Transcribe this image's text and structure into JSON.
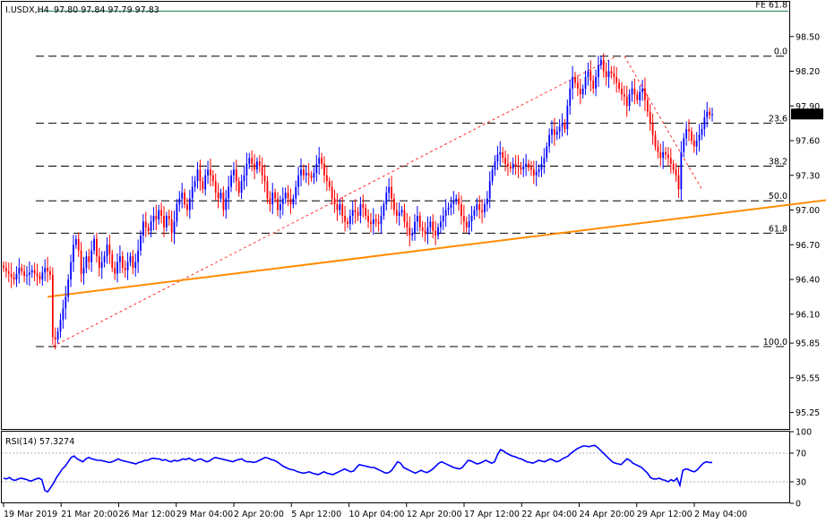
{
  "header": {
    "symbol": "I.USDX,H4",
    "ohlc": "97.80 97.84 97.79 97.83"
  },
  "rsi_title": "RSI(14) 57.3274",
  "colors": {
    "bull": "#0000ff",
    "bear": "#ff0000",
    "trend_support": "#ff8c00",
    "trend_resistance": "#3399dd",
    "fe_line": "#1a7a4a",
    "fib_lines": "#000000",
    "rsi_line": "#0000ff",
    "price_tag_bg": "#000000",
    "price_tag_text": "#ffffff"
  },
  "chart_data": [
    {
      "type": "candlestick",
      "title": "I.USDX,H4",
      "ylim": [
        95.1,
        98.8
      ],
      "yticks": [
        "98.50",
        "98.20",
        "97.90",
        "97.60",
        "97.30",
        "97.00",
        "96.70",
        "96.40",
        "96.10",
        "95.85",
        "95.55",
        "95.25"
      ],
      "last_price": "97.83",
      "x_tick_labels": [
        "19 Mar 2019",
        "21 Mar 20:00",
        "26 Mar 12:00",
        "29 Mar 04:00",
        "2 Apr 20:00",
        "5 Apr 12:00",
        "10 Apr 04:00",
        "12 Apr 20:00",
        "17 Apr 12:00",
        "22 Apr 04:00",
        "24 Apr 20:00",
        "29 Apr 12:00",
        "2 May 04:00"
      ],
      "fibonacci_levels": [
        {
          "label": "0.0",
          "price": 98.33
        },
        {
          "label": "23.6",
          "price": 97.75
        },
        {
          "label": "38.2",
          "price": 97.38
        },
        {
          "label": "50.0",
          "price": 97.08
        },
        {
          "label": "61.8",
          "price": 96.8
        },
        {
          "label": "100.0",
          "price": 95.82
        }
      ],
      "fe_level": {
        "label": "FE 61.8",
        "price": 98.72
      },
      "trendlines": [
        {
          "name": "support",
          "from": [
            17,
            96.25
          ],
          "to": [
            388,
            97.28
          ]
        },
        {
          "name": "resistance",
          "from": [
            322,
            98.3
          ],
          "to": [
            407,
            97.58
          ]
        }
      ],
      "series": [
        {
          "name": "close",
          "values": [
            96.5,
            96.47,
            96.45,
            96.42,
            96.4,
            96.45,
            96.5,
            96.47,
            96.43,
            96.44,
            96.46,
            96.48,
            96.45,
            96.43,
            96.4,
            96.46,
            96.5,
            96.47,
            96.44,
            95.9,
            95.88,
            95.95,
            96.05,
            96.15,
            96.25,
            96.4,
            96.55,
            96.7,
            96.75,
            96.65,
            96.45,
            96.5,
            96.6,
            96.55,
            96.65,
            96.75,
            96.6,
            96.5,
            96.55,
            96.6,
            96.7,
            96.62,
            96.5,
            96.45,
            96.55,
            96.6,
            96.5,
            96.48,
            96.55,
            96.6,
            96.5,
            96.55,
            96.65,
            96.78,
            96.9,
            96.85,
            96.82,
            96.9,
            96.95,
            96.92,
            97.0,
            96.95,
            96.85,
            96.95,
            96.92,
            96.8,
            96.9,
            97.05,
            97.1,
            97.15,
            97.05,
            97.0,
            97.1,
            97.2,
            97.25,
            97.35,
            97.25,
            97.18,
            97.3,
            97.35,
            97.3,
            97.25,
            97.15,
            97.1,
            97.15,
            97.0,
            97.1,
            97.2,
            97.3,
            97.35,
            97.25,
            97.15,
            97.25,
            97.3,
            97.4,
            97.45,
            97.4,
            97.35,
            97.42,
            97.38,
            97.3,
            97.25,
            97.1,
            97.05,
            97.15,
            97.1,
            97.0,
            97.05,
            97.1,
            97.15,
            97.1,
            97.05,
            97.1,
            97.2,
            97.3,
            97.35,
            97.3,
            97.32,
            97.3,
            97.28,
            97.32,
            97.4,
            97.45,
            97.4,
            97.3,
            97.25,
            97.2,
            97.1,
            97.05,
            97.0,
            97.05,
            96.95,
            96.9,
            96.88,
            96.95,
            97.0,
            96.98,
            96.95,
            97.05,
            97.02,
            96.95,
            96.9,
            96.88,
            96.92,
            96.9,
            96.88,
            96.95,
            97.05,
            97.15,
            97.2,
            97.1,
            97.0,
            96.95,
            96.98,
            97.0,
            96.9,
            96.85,
            96.78,
            96.8,
            96.9,
            96.95,
            96.85,
            96.82,
            96.8,
            96.85,
            96.9,
            96.82,
            96.78,
            96.85,
            96.9,
            96.95,
            97.0,
            97.02,
            97.05,
            97.08,
            97.1,
            97.05,
            96.95,
            96.9,
            96.85,
            96.9,
            96.95,
            97.0,
            97.05,
            97.0,
            96.98,
            97.05,
            97.1,
            97.25,
            97.35,
            97.42,
            97.48,
            97.5,
            97.45,
            97.4,
            97.38,
            97.36,
            97.4,
            97.38,
            97.37,
            97.35,
            97.38,
            97.4,
            97.37,
            97.35,
            97.3,
            97.33,
            97.35,
            97.4,
            97.45,
            97.55,
            97.65,
            97.7,
            97.65,
            97.68,
            97.72,
            97.75,
            97.7,
            97.9,
            98.05,
            98.15,
            98.1,
            98.05,
            98.0,
            98.05,
            98.15,
            98.2,
            98.12,
            98.05,
            98.15,
            98.25,
            98.3,
            98.2,
            98.15,
            98.2,
            98.18,
            98.15,
            98.1,
            98.05,
            98.0,
            97.98,
            97.9,
            98.0,
            98.05,
            98.0,
            97.95,
            98.02,
            98.05,
            97.95,
            97.85,
            97.75,
            97.65,
            97.55,
            97.5,
            97.45,
            97.5,
            97.48,
            97.45,
            97.4,
            97.35,
            97.3,
            97.18,
            97.5,
            97.62,
            97.7,
            97.68,
            97.6,
            97.55,
            97.6,
            97.65,
            97.7,
            97.8,
            97.85,
            97.82,
            97.83
          ]
        }
      ]
    },
    {
      "type": "line",
      "title": "RSI(14) 57.3274",
      "ylim": [
        0,
        100
      ],
      "yticks": [
        "100",
        "70",
        "30",
        "0"
      ],
      "levels": [
        70,
        30
      ],
      "series": [
        {
          "name": "RSI(14)",
          "values": [
            35,
            34,
            36,
            33,
            32,
            34,
            35,
            34,
            33,
            31,
            32,
            34,
            35,
            33,
            18,
            16,
            22,
            28,
            36,
            42,
            48,
            52,
            58,
            64,
            66,
            62,
            60,
            58,
            62,
            64,
            62,
            61,
            60,
            60,
            59,
            58,
            57,
            58,
            60,
            62,
            60,
            59,
            58,
            57,
            56,
            55,
            57,
            58,
            60,
            60,
            62,
            63,
            62,
            62,
            60,
            61,
            59,
            58,
            60,
            59,
            60,
            62,
            61,
            63,
            61,
            59,
            61,
            62,
            60,
            58,
            59,
            62,
            64,
            63,
            62,
            61,
            60,
            59,
            58,
            60,
            61,
            62,
            59,
            58,
            58,
            57,
            58,
            60,
            62,
            64,
            63,
            61,
            60,
            58,
            55,
            52,
            50,
            48,
            47,
            46,
            44,
            43,
            42,
            43,
            44,
            42,
            41,
            40,
            42,
            44,
            42,
            41,
            40,
            42,
            44,
            46,
            48,
            46,
            44,
            45,
            50,
            54,
            53,
            52,
            51,
            50,
            50,
            48,
            46,
            44,
            42,
            43,
            46,
            52,
            58,
            56,
            50,
            48,
            46,
            44,
            42,
            44,
            46,
            44,
            43,
            45,
            48,
            52,
            56,
            58,
            56,
            54,
            52,
            50,
            49,
            48,
            50,
            55,
            60,
            59,
            57,
            55,
            56,
            58,
            60,
            58,
            56,
            58,
            68,
            75,
            73,
            70,
            68,
            66,
            65,
            63,
            62,
            60,
            58,
            57,
            56,
            58,
            60,
            59,
            58,
            60,
            62,
            60,
            58,
            59,
            62,
            64,
            66,
            70,
            73,
            76,
            78,
            80,
            80,
            79,
            80,
            81,
            78,
            74,
            70,
            66,
            62,
            58,
            56,
            55,
            54,
            58,
            62,
            60,
            56,
            54,
            52,
            50,
            46,
            42,
            36,
            34,
            34,
            35,
            33,
            32,
            30,
            33,
            31,
            35,
            25,
            46,
            48,
            47,
            45,
            44,
            47,
            52,
            56,
            58,
            57,
            57
          ]
        }
      ]
    }
  ]
}
